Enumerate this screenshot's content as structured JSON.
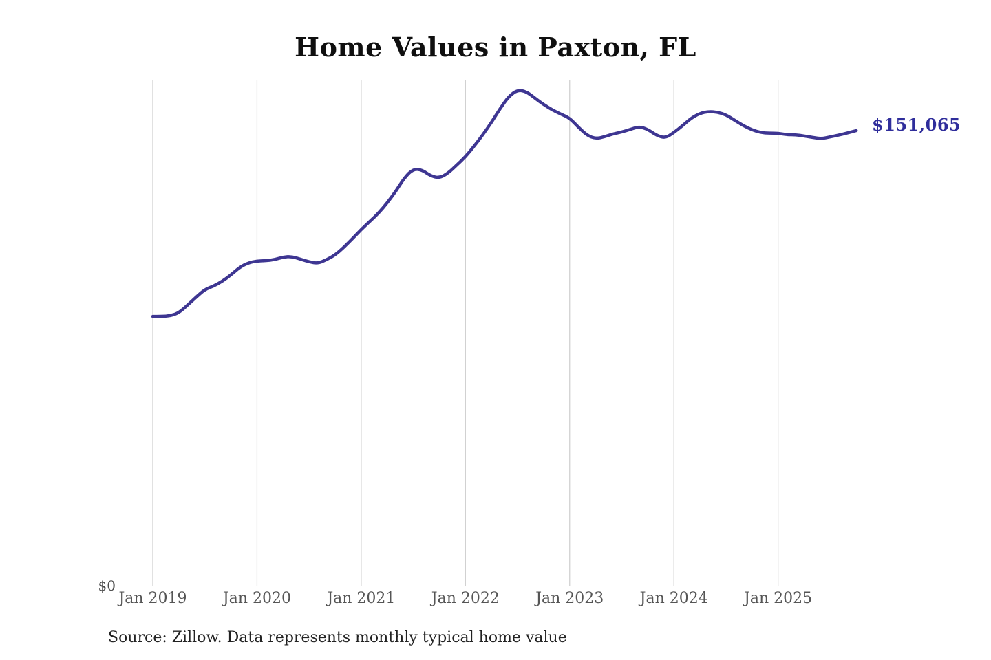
{
  "chart_data": {
    "type": "line",
    "title": "Home Values in Paxton, FL",
    "series_name": "Monthly typical home value",
    "unit": "USD",
    "x_range": {
      "start": "Jan 2019",
      "end": "Oct 2025",
      "interval": "monthly"
    },
    "x_tick_labels": [
      "Jan 2019",
      "Jan 2020",
      "Jan 2021",
      "Jan 2022",
      "Jan 2023",
      "Jan 2024",
      "Jan 2025"
    ],
    "y_zero_label": "$0",
    "ylim": [
      0,
      170000
    ],
    "grid": "vertical-only",
    "legend": "none",
    "end_label": "$151,065",
    "end_value": 151065,
    "line_color": "#3e3692",
    "label_color": "#2f2d9b",
    "grid_color": "#cdcdcd",
    "values": [
      89700,
      89700,
      89900,
      90900,
      93400,
      96100,
      98600,
      99700,
      101300,
      103400,
      105900,
      107400,
      108000,
      108100,
      108400,
      109300,
      109500,
      108600,
      107700,
      107200,
      108400,
      110000,
      112500,
      115400,
      118400,
      121100,
      123800,
      127200,
      131100,
      135600,
      138400,
      138100,
      136100,
      135400,
      137000,
      139700,
      142400,
      145900,
      149700,
      153800,
      158400,
      162400,
      164500,
      164000,
      161800,
      159700,
      157900,
      156500,
      155200,
      152200,
      149500,
      148400,
      149000,
      150000,
      150600,
      151500,
      152400,
      151500,
      149500,
      148600,
      150400,
      152700,
      155200,
      156800,
      157400,
      157200,
      156300,
      154500,
      152700,
      151300,
      150400,
      150200,
      150200,
      149700,
      149700,
      149300,
      148800,
      148400,
      149000,
      149600,
      150300,
      151065
    ]
  },
  "footer": {
    "source": "Source: Zillow. Data represents monthly typical home value"
  }
}
